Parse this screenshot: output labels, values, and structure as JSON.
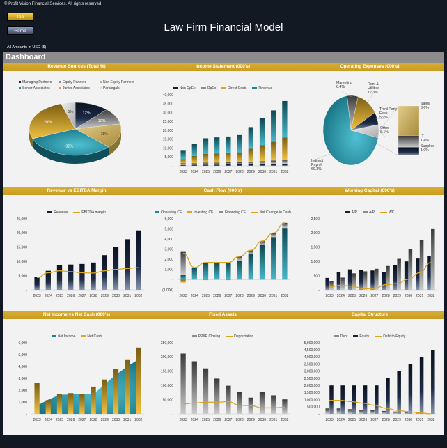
{
  "header": {
    "copyright": "© Profit Vision Financial Services. All rights reserved.",
    "top_button": "Top",
    "home_button": "Home",
    "title": "Law Firm Financial Model",
    "amounts_note": "All Amounts in  USD ($)",
    "section": "Dashboard"
  },
  "palette": {
    "navy": "#16213a",
    "teal": "#1f8494",
    "gold": "#d9a520",
    "gray": "#8c8c8c",
    "tan": "#c9b06a",
    "lightgray": "#d9d9d9",
    "title_bar": "#d4a72c",
    "background": "#121923"
  },
  "chart_data": [
    {
      "type": "pie",
      "style": "3d",
      "title": "Revenue Sources (Total %)",
      "legend": "top",
      "slices": [
        {
          "name": "Managing Partners",
          "value": 12,
          "label": "12%",
          "color": "navy"
        },
        {
          "name": "Equity Partners",
          "value": 10,
          "label": "10%",
          "color": "gray"
        },
        {
          "name": "Non Equity Partners",
          "value": 15,
          "label": "15%",
          "color": "tan"
        },
        {
          "name": "Senior Associates",
          "value": 32,
          "label": "32%",
          "color": "teal"
        },
        {
          "name": "Junior Associates",
          "value": 26,
          "label": "26%",
          "color": "gold"
        },
        {
          "name": "Paralegals",
          "value": 5,
          "label": "5%",
          "color": "lightgray"
        }
      ]
    },
    {
      "type": "bar",
      "stacked": true,
      "title": "Income Statement (000's)",
      "legend": "top",
      "categories": [
        "2023",
        "2024",
        "2025",
        "2026",
        "2027",
        "2028",
        "2029",
        "2030",
        "2031",
        "2032"
      ],
      "ylim": [
        0,
        40000
      ],
      "yticks": [
        "-",
        "5,000",
        "10,000",
        "15,000",
        "20,000",
        "25,000",
        "30,000",
        "35,000",
        "40,000"
      ],
      "series": [
        {
          "name": "Non OpEx",
          "kind": "stack",
          "color": "navy",
          "values": [
            500,
            600,
            700,
            700,
            800,
            800,
            900,
            1000,
            1100,
            1200
          ]
        },
        {
          "name": "OpEx",
          "kind": "stack",
          "color": "gray",
          "values": [
            1000,
            900,
            1100,
            1100,
            1200,
            1200,
            1400,
            1600,
            1900,
            2300
          ]
        },
        {
          "name": "Direct Costs",
          "kind": "stack",
          "color": "gold",
          "values": [
            2300,
            4000,
            5000,
            5200,
            5500,
            5600,
            7300,
            9100,
            10500,
            12400
          ]
        },
        {
          "name": "Revenue",
          "kind": "stack",
          "color": "teal",
          "values": [
            4700,
            6700,
            8700,
            9000,
            9000,
            9700,
            12200,
            15000,
            17700,
            20600
          ]
        }
      ]
    },
    {
      "type": "pie",
      "style": "bar-of-pie",
      "title": "Operating Expenses (000's)",
      "slices": [
        {
          "name": "Marketing",
          "label": "6.4%",
          "value": 6.4,
          "color": "gray"
        },
        {
          "name": "Rent & Utilities",
          "label": "12.3%",
          "value": 12.3,
          "color": "gold"
        },
        {
          "name": "Third Party Fees",
          "label": "5.9%",
          "value": 5.9,
          "color": "navy"
        },
        {
          "name": "Other",
          "label": "6.1%",
          "value": 6.1,
          "color": "lightgray"
        },
        {
          "name": "Indirect Payroll",
          "label": "69.3%",
          "value": 69.3,
          "color": "teal"
        }
      ],
      "other_breakdown": [
        {
          "name": "Sales",
          "label": "3.6%",
          "value": 3.6,
          "color": "tan"
        },
        {
          "name": "IT",
          "label": "1.4%",
          "value": 1.4,
          "color": "gray"
        },
        {
          "name": "Supplies",
          "label": "1.0%",
          "value": 1.0,
          "color": "navy"
        }
      ]
    },
    {
      "type": "bar",
      "title": "Revenue vs EBITDA Margin",
      "legend": "top",
      "categories": [
        "2023",
        "2024",
        "2025",
        "2026",
        "2027",
        "2028",
        "2029",
        "2030",
        "2031",
        "2032"
      ],
      "ylim": [
        0,
        25000
      ],
      "yticks": [
        "-",
        "5,000",
        "10,000",
        "15,000",
        "20,000",
        "25,000"
      ],
      "series": [
        {
          "name": "Revenue",
          "kind": "bar",
          "color": "navy",
          "values": [
            4500,
            6700,
            8700,
            8900,
            9100,
            9600,
            12200,
            15000,
            17800,
            20900
          ]
        },
        {
          "name": "EBITDA margin",
          "kind": "line",
          "color": "gold",
          "values": [
            4300,
            6000,
            6700,
            6400,
            6000,
            5900,
            6700,
            7200,
            7500,
            7800
          ]
        }
      ]
    },
    {
      "type": "bar",
      "stacked": true,
      "title": "Cash Flow (000's)",
      "legend": "top",
      "categories": [
        "2023",
        "2024",
        "2025",
        "2026",
        "2027",
        "2028",
        "2029",
        "2030",
        "2031",
        "2032"
      ],
      "ylim": [
        -1000,
        6000
      ],
      "yticks": [
        "(1,000)",
        "-",
        "1,000",
        "2,000",
        "3,000",
        "4,000",
        "5,000",
        "6,000"
      ],
      "series": [
        {
          "name": "Operating CF",
          "kind": "stack",
          "color": "teal",
          "values": [
            500,
            1200,
            1700,
            1700,
            1700,
            1900,
            2500,
            3400,
            4200,
            5100
          ]
        },
        {
          "name": "Investing CF",
          "kind": "stack",
          "color": "gold",
          "values": [
            -300,
            0,
            -50,
            0,
            -50,
            0,
            0,
            0,
            0,
            0
          ]
        },
        {
          "name": "Financing CF",
          "kind": "stack",
          "color": "gray",
          "values": [
            2300,
            0,
            0,
            0,
            0,
            400,
            400,
            400,
            400,
            500
          ]
        },
        {
          "name": "Net Change in Cash",
          "kind": "line",
          "color": "gold",
          "values": [
            2600,
            1200,
            1700,
            1700,
            1700,
            2300,
            2900,
            3800,
            4600,
            5600
          ]
        }
      ]
    },
    {
      "type": "bar",
      "title": "Working Capital (000's)",
      "legend": "top",
      "categories": [
        "2023",
        "2024",
        "2025",
        "2026",
        "2027",
        "2028",
        "2029",
        "2030",
        "2031",
        "2032"
      ],
      "ylim": [
        0,
        2500
      ],
      "yticks": [
        "-",
        "500",
        "1,000",
        "1,500",
        "2,000",
        "2,500"
      ],
      "series": [
        {
          "name": "A/R",
          "kind": "bar",
          "color": "navy",
          "values": [
            420,
            620,
            720,
            700,
            680,
            620,
            860,
            1000,
            1100,
            1190
          ]
        },
        {
          "name": "A/P",
          "kind": "bar",
          "color": "gray",
          "values": [
            300,
            430,
            580,
            650,
            740,
            840,
            1090,
            1420,
            1760,
            2160
          ]
        },
        {
          "name": "WC",
          "kind": "line",
          "color": "gold",
          "values": [
            100,
            160,
            130,
            40,
            50,
            180,
            220,
            370,
            600,
            960
          ]
        }
      ]
    },
    {
      "type": "bar",
      "title": "Net Income vs Net Cash (000's)",
      "legend": "top",
      "categories": [
        "2023",
        "2024",
        "2025",
        "2026",
        "2027",
        "2028",
        "2029",
        "2030",
        "2031",
        "2032"
      ],
      "ylim": [
        0,
        6000
      ],
      "yticks": [
        "-",
        "1,000",
        "2,000",
        "3,000",
        "4,000",
        "5,000",
        "6,000"
      ],
      "series": [
        {
          "name": "Net Income",
          "kind": "area",
          "color": "teal",
          "values": [
            700,
            1200,
            1600,
            1650,
            1650,
            1650,
            2500,
            3300,
            4000,
            4600
          ]
        },
        {
          "name": "Net Cash",
          "kind": "bar",
          "color": "gold",
          "values": [
            2600,
            1150,
            1700,
            1750,
            1700,
            2300,
            2900,
            3800,
            4600,
            5600
          ]
        }
      ]
    },
    {
      "type": "bar",
      "title": "Fixed Assets",
      "legend": "top",
      "categories": [
        "2023",
        "2024",
        "2025",
        "2026",
        "2027",
        "2028",
        "2029",
        "2030",
        "2031",
        "2032"
      ],
      "ylim": [
        0,
        250000
      ],
      "yticks": [
        "-",
        "50,000",
        "100,000",
        "150,000",
        "200,000",
        "250,000"
      ],
      "series": [
        {
          "name": "PP&E Closing",
          "kind": "bar",
          "color": "gray",
          "values": [
            212000,
            185000,
            160000,
            124000,
            99000,
            76000,
            57000,
            77000,
            65000,
            51000
          ]
        },
        {
          "name": "Depreciation",
          "kind": "line",
          "color": "gold",
          "values": [
            35000,
            38000,
            41000,
            41000,
            43000,
            30000,
            29000,
            21000,
            21000,
            23000
          ]
        }
      ]
    },
    {
      "type": "bar",
      "title": "Capital Structure",
      "legend": "top",
      "categories": [
        "2023",
        "2024",
        "2025",
        "2026",
        "2027",
        "2028",
        "2029",
        "2030",
        "2031",
        "2032"
      ],
      "ylim": [
        0,
        5000000
      ],
      "yticks": [
        "-",
        "500,000",
        "1,000,000",
        "1,500,000",
        "2,000,000",
        "2,500,000",
        "3,000,000",
        "3,500,000",
        "4,000,000",
        "4,500,000",
        "5,000,000"
      ],
      "series": [
        {
          "name": "Debt",
          "kind": "bar",
          "color": "gray",
          "values": [
            380000,
            380000,
            330000,
            280000,
            250000,
            200000,
            160000,
            120000,
            80000,
            20000
          ]
        },
        {
          "name": "Equity",
          "kind": "bar",
          "color": "navy",
          "values": [
            2000000,
            2000000,
            2000000,
            2000000,
            2000000,
            2500000,
            3000000,
            3500000,
            4000000,
            4500000
          ]
        },
        {
          "name": "Debt-to-Equity",
          "kind": "line",
          "color": "gold",
          "values": [
            950000,
            950000,
            850000,
            750000,
            600000,
            400000,
            250000,
            150000,
            70000,
            0
          ]
        }
      ]
    }
  ]
}
